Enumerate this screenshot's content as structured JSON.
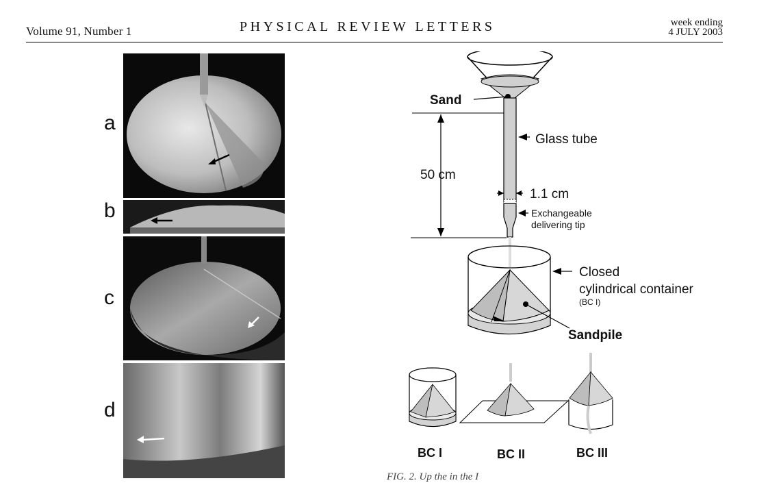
{
  "header": {
    "volume_left": "Volume 91, Number 1",
    "journal": "PHYSICAL REVIEW LETTERS",
    "week_ending": "week ending",
    "date": "4 JULY 2003"
  },
  "photo_panels": [
    {
      "label": "a"
    },
    {
      "label": "b"
    },
    {
      "label": "c"
    },
    {
      "label": "d"
    }
  ],
  "diagram": {
    "sand": "Sand",
    "glass_tube": "Glass tube",
    "height": "50 cm",
    "diameter": "1.1 cm",
    "tip_line1": "Exchangeable",
    "tip_line2": "delivering tip",
    "container_line1": "Closed",
    "container_line2": "cylindrical container",
    "container_line3": "(BC I)",
    "sandpile": "Sandpile",
    "bc1": "BC I",
    "bc2": "BC II",
    "bc3": "BC III"
  },
  "caption_partial": "FIG. 2.  Up         the      in              the           I"
}
